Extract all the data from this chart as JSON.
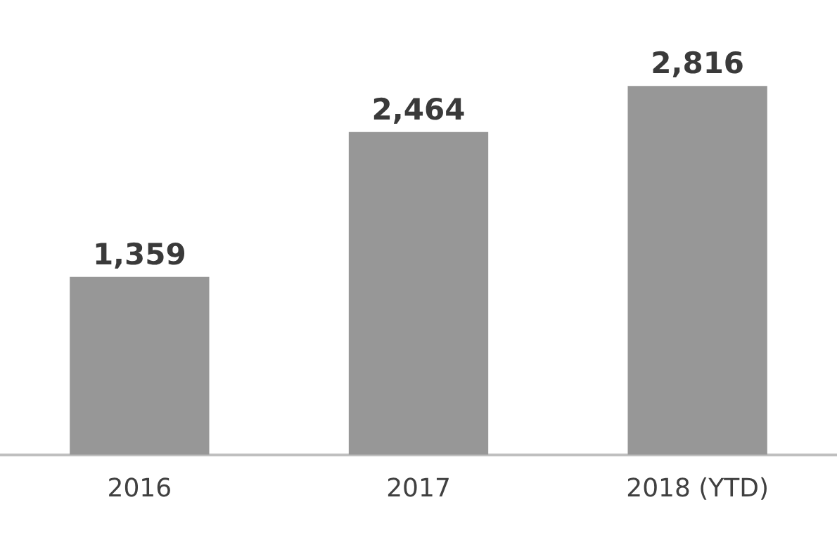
{
  "chart_data": {
    "type": "bar",
    "categories": [
      "2016",
      "2017",
      "2018 (YTD)"
    ],
    "values": [
      1359,
      2464,
      2816
    ],
    "color": "#979797",
    "value_labels": [
      "1,359",
      "2,464",
      "2,816"
    ],
    "grid": false,
    "legend": false
  }
}
